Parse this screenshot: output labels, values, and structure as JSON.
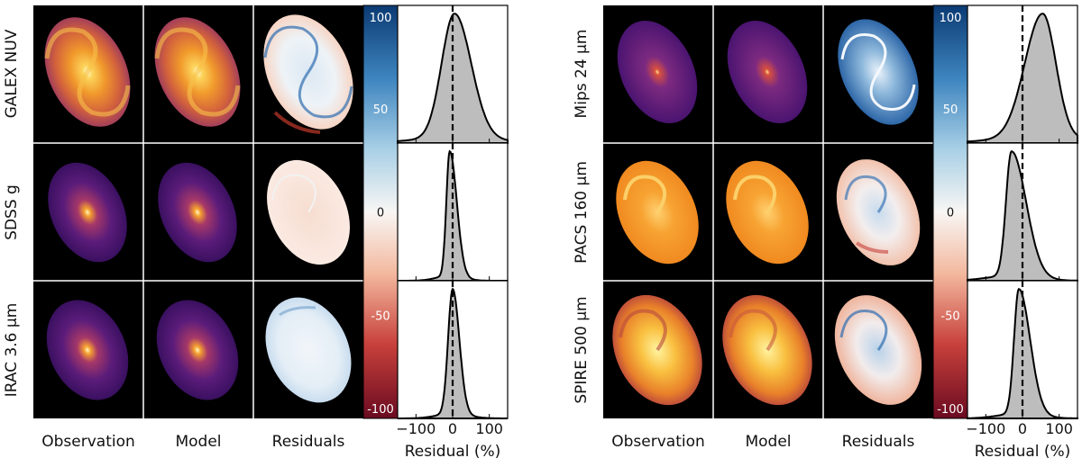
{
  "chart_data": {
    "type": "image-grid-with-residual-histograms",
    "columns": [
      "Observation",
      "Model",
      "Residuals"
    ],
    "colorbar": {
      "ticks": [
        100,
        50,
        0,
        -50,
        -100
      ],
      "tick_labels": [
        "100",
        "50",
        "0",
        "-50",
        "-100"
      ],
      "colormap": "red-white-blue (diverging)"
    },
    "panels": [
      {
        "name": "left",
        "rows": [
          {
            "band": "GALEX NUV",
            "image_cmap": "inferno",
            "hist_peak": 5,
            "hist_spread": 38,
            "hist_skew": 0.2
          },
          {
            "band": "SDSS g",
            "image_cmap": "inferno",
            "hist_peak": -8,
            "hist_spread": 12,
            "hist_skew": 0.6
          },
          {
            "band": "IRAC 3.6 μm",
            "image_cmap": "inferno",
            "hist_peak": 0,
            "hist_spread": 14,
            "hist_skew": 0.3
          }
        ],
        "hist_xaxis": {
          "ticks": [
            -100,
            0,
            100
          ],
          "tick_labels": [
            "−100",
            "0",
            "100"
          ],
          "xlim": [
            -150,
            150
          ],
          "label": "Residual (%)"
        }
      },
      {
        "name": "right",
        "rows": [
          {
            "band": "Mips 24 μm",
            "image_cmap": "inferno",
            "hist_peak": 55,
            "hist_spread": 45,
            "hist_skew": -0.2
          },
          {
            "band": "PACS 160 μm",
            "image_cmap": "inferno",
            "hist_peak": -30,
            "hist_spread": 22,
            "hist_skew": 0.8
          },
          {
            "band": "SPIRE 500 μm",
            "image_cmap": "inferno",
            "hist_peak": -10,
            "hist_spread": 18,
            "hist_skew": 0.7
          }
        ],
        "hist_xaxis": {
          "ticks": [
            -100,
            0,
            100
          ],
          "tick_labels": [
            "−100",
            "0",
            "100"
          ],
          "xlim": [
            -150,
            150
          ],
          "label": "Residual (%)"
        }
      }
    ],
    "reference_line": {
      "x": 0,
      "style": "dashed"
    }
  }
}
